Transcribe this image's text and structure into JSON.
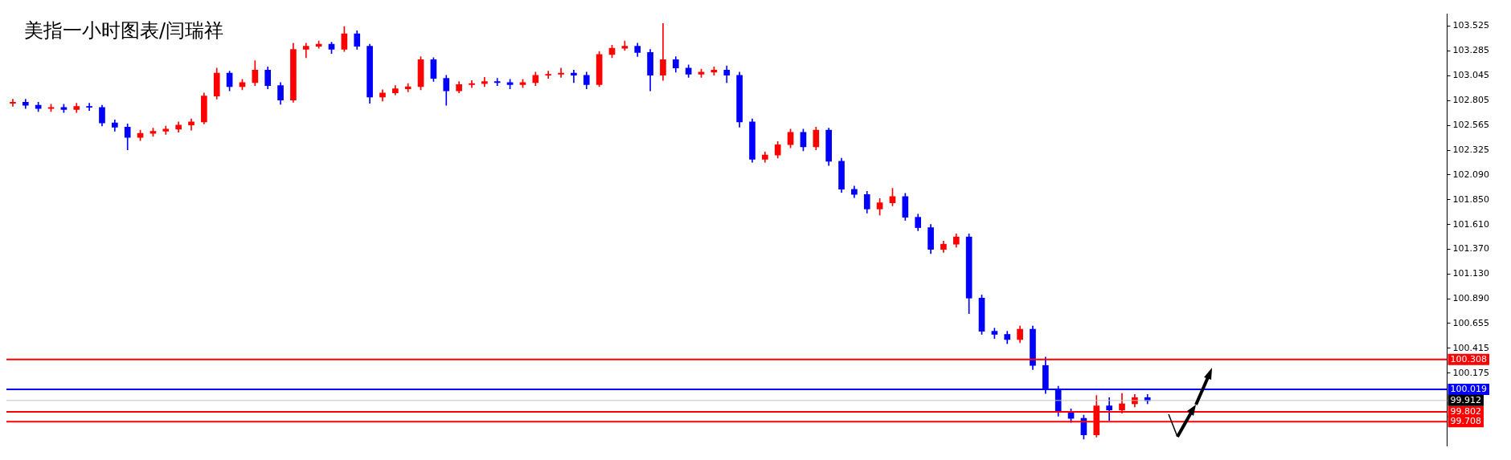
{
  "chart_data": {
    "type": "candlestick",
    "title": "美指一小时图表/闫瑞祥",
    "categories": [
      null,
      null,
      null,
      null,
      null,
      null,
      null,
      null,
      null,
      null,
      null,
      null,
      null,
      null,
      null,
      null,
      null,
      null,
      null,
      null,
      null,
      null,
      null,
      null,
      null,
      null,
      null,
      null,
      null,
      null,
      null,
      null,
      null,
      null,
      null,
      null,
      null,
      null,
      null,
      null,
      null,
      null,
      null,
      null,
      null,
      null,
      null,
      null,
      null,
      null,
      null,
      null,
      null,
      null,
      null,
      null,
      null,
      null,
      null,
      null,
      null,
      null,
      null,
      null,
      null,
      null,
      null,
      null,
      null,
      null,
      null,
      null,
      null,
      null,
      null,
      null,
      null,
      null,
      null,
      null,
      null,
      null,
      null,
      null,
      null,
      null,
      null,
      null,
      null,
      null,
      null,
      null,
      null,
      null,
      null,
      null,
      null,
      null,
      null,
      null,
      null,
      null,
      null,
      null,
      null,
      null,
      null,
      null,
      null,
      null,
      null,
      null,
      null
    ],
    "ohlc": [
      [
        102.78,
        102.82,
        102.75,
        102.79
      ],
      [
        102.79,
        102.82,
        102.73,
        102.76
      ],
      [
        102.76,
        102.79,
        102.7,
        102.73
      ],
      [
        102.73,
        102.77,
        102.7,
        102.74
      ],
      [
        102.74,
        102.77,
        102.69,
        102.72
      ],
      [
        102.72,
        102.78,
        102.69,
        102.75
      ],
      [
        102.75,
        102.78,
        102.71,
        102.74
      ],
      [
        102.74,
        102.76,
        102.56,
        102.59
      ],
      [
        102.59,
        102.62,
        102.51,
        102.55
      ],
      [
        102.55,
        102.58,
        102.33,
        102.45
      ],
      [
        102.45,
        102.52,
        102.42,
        102.49
      ],
      [
        102.49,
        102.54,
        102.46,
        102.51
      ],
      [
        102.51,
        102.56,
        102.48,
        102.53
      ],
      [
        102.53,
        102.6,
        102.5,
        102.57
      ],
      [
        102.57,
        102.63,
        102.52,
        102.6
      ],
      [
        102.6,
        102.88,
        102.58,
        102.85
      ],
      [
        102.85,
        103.12,
        102.82,
        103.07
      ],
      [
        103.07,
        103.09,
        102.9,
        102.94
      ],
      [
        102.94,
        103.01,
        102.91,
        102.98
      ],
      [
        102.98,
        103.19,
        102.95,
        103.1
      ],
      [
        103.1,
        103.13,
        102.92,
        102.95
      ],
      [
        102.95,
        102.98,
        102.77,
        102.81
      ],
      [
        102.81,
        103.36,
        102.79,
        103.3
      ],
      [
        103.3,
        103.36,
        103.22,
        103.33
      ],
      [
        103.33,
        103.38,
        103.31,
        103.35
      ],
      [
        103.35,
        103.37,
        103.26,
        103.3
      ],
      [
        103.3,
        103.52,
        103.28,
        103.45
      ],
      [
        103.45,
        103.48,
        103.3,
        103.33
      ],
      [
        103.33,
        103.35,
        102.78,
        102.84
      ],
      [
        102.84,
        102.91,
        102.8,
        102.88
      ],
      [
        102.88,
        102.95,
        102.86,
        102.92
      ],
      [
        102.92,
        102.97,
        102.89,
        102.94
      ],
      [
        102.94,
        103.23,
        102.91,
        103.2
      ],
      [
        103.2,
        103.22,
        102.99,
        103.02
      ],
      [
        103.02,
        103.05,
        102.76,
        102.9
      ],
      [
        102.9,
        102.99,
        102.88,
        102.96
      ],
      [
        102.96,
        103.0,
        102.93,
        102.97
      ],
      [
        102.97,
        103.03,
        102.94,
        102.99
      ],
      [
        102.99,
        103.02,
        102.95,
        102.98
      ],
      [
        102.98,
        103.01,
        102.92,
        102.96
      ],
      [
        102.96,
        103.01,
        102.93,
        102.98
      ],
      [
        102.98,
        103.08,
        102.95,
        103.05
      ],
      [
        103.05,
        103.09,
        103.02,
        103.06
      ],
      [
        103.06,
        103.12,
        103.03,
        103.07
      ],
      [
        103.07,
        103.1,
        102.98,
        103.05
      ],
      [
        103.05,
        103.08,
        102.92,
        102.96
      ],
      [
        102.96,
        103.28,
        102.94,
        103.25
      ],
      [
        103.25,
        103.34,
        103.22,
        103.31
      ],
      [
        103.31,
        103.38,
        103.29,
        103.33
      ],
      [
        103.33,
        103.36,
        103.23,
        103.27
      ],
      [
        103.27,
        103.3,
        102.9,
        103.05
      ],
      [
        103.05,
        103.55,
        103.0,
        103.2
      ],
      [
        103.2,
        103.23,
        103.08,
        103.12
      ],
      [
        103.12,
        103.15,
        103.03,
        103.06
      ],
      [
        103.06,
        103.11,
        103.03,
        103.08
      ],
      [
        103.08,
        103.13,
        103.05,
        103.1
      ],
      [
        103.1,
        103.14,
        102.98,
        103.05
      ],
      [
        103.05,
        103.08,
        102.55,
        102.6
      ],
      [
        102.6,
        102.63,
        102.21,
        102.24
      ],
      [
        102.24,
        102.31,
        102.21,
        102.28
      ],
      [
        102.28,
        102.41,
        102.25,
        102.38
      ],
      [
        102.38,
        102.53,
        102.35,
        102.5
      ],
      [
        102.5,
        102.53,
        102.32,
        102.36
      ],
      [
        102.36,
        102.55,
        102.33,
        102.52
      ],
      [
        102.52,
        102.54,
        102.18,
        102.22
      ],
      [
        102.22,
        102.25,
        101.92,
        101.95
      ],
      [
        101.95,
        101.98,
        101.87,
        101.9
      ],
      [
        101.9,
        101.93,
        101.72,
        101.76
      ],
      [
        101.76,
        101.86,
        101.7,
        101.82
      ],
      [
        101.82,
        101.96,
        101.79,
        101.88
      ],
      [
        101.88,
        101.91,
        101.65,
        101.68
      ],
      [
        101.68,
        101.71,
        101.55,
        101.58
      ],
      [
        101.58,
        101.61,
        101.33,
        101.37
      ],
      [
        101.37,
        101.45,
        101.34,
        101.42
      ],
      [
        101.42,
        101.52,
        101.39,
        101.49
      ],
      [
        101.49,
        101.52,
        100.75,
        100.9
      ],
      [
        100.9,
        100.93,
        100.55,
        100.58
      ],
      [
        100.58,
        100.61,
        100.51,
        100.55
      ],
      [
        100.55,
        100.58,
        100.46,
        100.5
      ],
      [
        100.5,
        100.63,
        100.47,
        100.6
      ],
      [
        100.6,
        100.63,
        100.21,
        100.25
      ],
      [
        100.25,
        100.33,
        99.98,
        100.02
      ],
      [
        100.02,
        100.05,
        99.76,
        99.8
      ],
      [
        99.8,
        99.83,
        99.7,
        99.74
      ],
      [
        99.74,
        99.77,
        99.54,
        99.58
      ],
      [
        99.58,
        99.96,
        99.56,
        99.86
      ],
      [
        99.86,
        99.94,
        99.72,
        99.82
      ],
      [
        99.82,
        99.98,
        99.79,
        99.88
      ],
      [
        99.88,
        99.97,
        99.85,
        99.94
      ],
      [
        99.94,
        99.97,
        99.88,
        99.91
      ],
      null,
      null,
      null,
      null,
      null,
      null,
      null,
      null,
      null,
      null,
      null,
      null,
      null,
      null,
      null,
      null,
      null,
      null,
      null,
      null,
      null,
      null,
      null
    ],
    "colors": [
      "#ff0000",
      "#0000ff",
      "#0000ff",
      "#ff0000",
      "#0000ff",
      "#ff0000",
      "#0000ff",
      "#0000ff",
      "#0000ff",
      "#0000ff",
      "#ff0000",
      "#ff0000",
      "#ff0000",
      "#ff0000",
      "#ff0000",
      "#ff0000",
      "#ff0000",
      "#0000ff",
      "#ff0000",
      "#ff0000",
      "#0000ff",
      "#0000ff",
      "#ff0000",
      "#ff0000",
      "#ff0000",
      "#0000ff",
      "#ff0000",
      "#0000ff",
      "#0000ff",
      "#ff0000",
      "#ff0000",
      "#ff0000",
      "#ff0000",
      "#0000ff",
      "#0000ff",
      "#ff0000",
      "#ff0000",
      "#ff0000",
      "#0000ff",
      "#0000ff",
      "#ff0000",
      "#ff0000",
      "#ff0000",
      "#ff0000",
      "#0000ff",
      "#0000ff",
      "#ff0000",
      "#ff0000",
      "#ff0000",
      "#0000ff",
      "#0000ff",
      "#ff0000",
      "#0000ff",
      "#0000ff",
      "#ff0000",
      "#ff0000",
      "#0000ff",
      "#0000ff",
      "#0000ff",
      "#ff0000",
      "#ff0000",
      "#ff0000",
      "#0000ff",
      "#ff0000",
      "#0000ff",
      "#0000ff",
      "#0000ff",
      "#0000ff",
      "#ff0000",
      "#ff0000",
      "#0000ff",
      "#0000ff",
      "#0000ff",
      "#ff0000",
      "#ff0000",
      "#0000ff",
      "#0000ff",
      "#0000ff",
      "#0000ff",
      "#ff0000",
      "#0000ff",
      "#0000ff",
      "#0000ff",
      "#0000ff",
      "#0000ff",
      "#ff0000",
      "#0000ff",
      "#ff0000",
      "#ff0000",
      "#0000ff",
      null,
      null,
      null,
      null,
      null,
      null,
      null,
      null,
      null,
      null,
      null,
      null,
      null,
      null,
      null,
      null,
      null,
      null,
      null,
      null,
      null,
      null,
      null
    ],
    "ylim": [
      99.474,
      103.64
    ],
    "yticks": [
      100.175,
      100.415,
      100.655,
      {
        "value": 100.89,
        "label": "100.890"
      },
      {
        "value": 101.13,
        "label": "101.130"
      },
      {
        "value": 101.37,
        "label": "101.370"
      },
      {
        "value": 101.61,
        "label": "101.610"
      },
      {
        "value": 101.85,
        "label": "101.850"
      },
      {
        "value": 102.09,
        "label": "102.090"
      },
      102.325,
      102.565,
      102.805,
      103.045,
      103.285,
      103.525
    ],
    "ref_lines": [
      {
        "axis": "y",
        "value": 100.308,
        "label": "100.308",
        "color": "#ff0000"
      },
      {
        "axis": "y",
        "value": 100.019,
        "label": "100.019",
        "color": "#0000ff"
      },
      {
        "axis": "y",
        "value": 99.912,
        "label": "99.912",
        "color": "#c0c0c0"
      },
      {
        "axis": "y",
        "value": 99.802,
        "label": "99.802",
        "color": "#ff0000"
      },
      {
        "axis": "y",
        "value": 99.708,
        "label": "99.708",
        "color": "#ff0000"
      }
    ],
    "grid": false,
    "legend": false
  }
}
